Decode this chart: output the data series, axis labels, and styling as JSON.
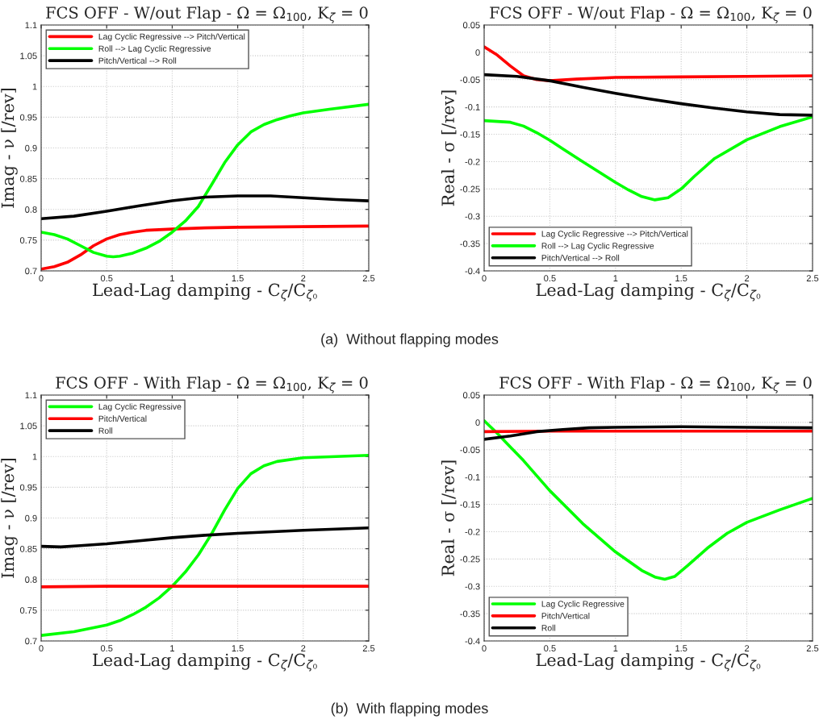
{
  "chart_data": [
    {
      "type": "line",
      "title": "FCS OFF - W/out Flap - Ω = Ω$_{100}$, K$_{ζ}$ = 0",
      "xlabel": "Lead-Lag damping - C$_{ζ}$/C$_{ζ₀}$",
      "ylabel": "Imag - ν [/rev]",
      "xlim": [
        0,
        2.5
      ],
      "ylim": [
        0.7,
        1.1
      ],
      "xticks": [
        0,
        0.5,
        1,
        1.5,
        2,
        2.5
      ],
      "yticks": [
        0.7,
        0.75,
        0.8,
        0.85,
        0.9,
        0.95,
        1,
        1.05,
        1.1
      ],
      "grid": true,
      "legend": "top left",
      "line_style": "solid",
      "marker": "none",
      "annotations": [
        "(a)  Without flapping modes"
      ],
      "series": [
        {
          "name": "Lag Cyclic Regressive --> Pitch/Vertical",
          "color": "#ff0000",
          "x": [
            0,
            0.1,
            0.2,
            0.3,
            0.4,
            0.5,
            0.6,
            0.7,
            0.8,
            1.0,
            1.25,
            1.5,
            2.0,
            2.5
          ],
          "values": [
            0.703,
            0.707,
            0.714,
            0.726,
            0.741,
            0.752,
            0.759,
            0.763,
            0.766,
            0.768,
            0.77,
            0.771,
            0.772,
            0.773
          ]
        },
        {
          "name": "Roll --> Lag Cyclic Regressive",
          "color": "#00ff00",
          "x": [
            0,
            0.1,
            0.2,
            0.3,
            0.4,
            0.5,
            0.55,
            0.6,
            0.7,
            0.8,
            0.9,
            1.0,
            1.1,
            1.2,
            1.3,
            1.4,
            1.5,
            1.6,
            1.7,
            1.8,
            1.9,
            2.0,
            2.2,
            2.5
          ],
          "values": [
            0.763,
            0.759,
            0.752,
            0.741,
            0.73,
            0.724,
            0.723,
            0.724,
            0.729,
            0.737,
            0.748,
            0.763,
            0.781,
            0.805,
            0.84,
            0.876,
            0.905,
            0.926,
            0.938,
            0.946,
            0.952,
            0.957,
            0.963,
            0.971
          ]
        },
        {
          "name": "Pitch/Vertical --> Roll",
          "color": "#000000",
          "x": [
            0,
            0.25,
            0.5,
            0.75,
            1.0,
            1.25,
            1.5,
            1.75,
            2.0,
            2.25,
            2.5
          ],
          "values": [
            0.785,
            0.789,
            0.797,
            0.806,
            0.814,
            0.82,
            0.822,
            0.822,
            0.819,
            0.816,
            0.814
          ]
        }
      ]
    },
    {
      "type": "line",
      "title": "FCS OFF - W/out Flap - Ω = Ω$_{100}$, K$_{ζ}$ = 0",
      "xlabel": "Lead-Lag damping - C$_{ζ}$/C$_{ζ₀}$",
      "ylabel": "Real - σ [/rev]",
      "xlim": [
        0,
        2.5
      ],
      "ylim": [
        -0.4,
        0.05
      ],
      "xticks": [
        0,
        0.5,
        1,
        1.5,
        2,
        2.5
      ],
      "yticks": [
        -0.4,
        -0.35,
        -0.3,
        -0.25,
        -0.2,
        -0.15,
        -0.1,
        -0.05,
        0,
        0.05
      ],
      "grid": true,
      "legend": "bottom left",
      "line_style": "solid",
      "marker": "none",
      "series": [
        {
          "name": "Lag Cyclic Regressive --> Pitch/Vertical",
          "color": "#ff0000",
          "x": [
            0,
            0.1,
            0.2,
            0.3,
            0.4,
            0.5,
            0.7,
            1.0,
            1.5,
            2.0,
            2.5
          ],
          "values": [
            0.01,
            -0.005,
            -0.025,
            -0.043,
            -0.05,
            -0.052,
            -0.049,
            -0.046,
            -0.045,
            -0.044,
            -0.043
          ]
        },
        {
          "name": "Roll --> Lag Cyclic Regressive",
          "color": "#00ff00",
          "x": [
            0,
            0.2,
            0.3,
            0.4,
            0.5,
            0.6,
            0.75,
            1.0,
            1.1,
            1.2,
            1.3,
            1.4,
            1.5,
            1.6,
            1.75,
            2.0,
            2.25,
            2.5
          ],
          "values": [
            -0.125,
            -0.128,
            -0.135,
            -0.147,
            -0.161,
            -0.177,
            -0.2,
            -0.238,
            -0.252,
            -0.264,
            -0.27,
            -0.266,
            -0.25,
            -0.227,
            -0.195,
            -0.16,
            -0.136,
            -0.118
          ]
        },
        {
          "name": "Pitch/Vertical --> Roll",
          "color": "#000000",
          "x": [
            0,
            0.25,
            0.5,
            0.75,
            1.0,
            1.25,
            1.5,
            1.75,
            2.0,
            2.25,
            2.5
          ],
          "values": [
            -0.041,
            -0.044,
            -0.052,
            -0.064,
            -0.075,
            -0.085,
            -0.094,
            -0.102,
            -0.109,
            -0.114,
            -0.115
          ]
        }
      ]
    },
    {
      "type": "line",
      "title": "FCS OFF - With Flap - Ω = Ω$_{100}$, K$_{ζ}$ = 0",
      "xlabel": "Lead-Lag damping - C$_{ζ}$/C$_{ζ₀}$",
      "ylabel": "Imag - ν [/rev]",
      "xlim": [
        0,
        2.5
      ],
      "ylim": [
        0.7,
        1.1
      ],
      "xticks": [
        0,
        0.5,
        1,
        1.5,
        2,
        2.5
      ],
      "yticks": [
        0.7,
        0.75,
        0.8,
        0.85,
        0.9,
        0.95,
        1,
        1.05,
        1.1
      ],
      "grid": true,
      "legend": "top left",
      "line_style": "solid",
      "marker": "none",
      "annotations": [
        "(b)  With flapping modes"
      ],
      "series": [
        {
          "name": "Lag Cyclic Regressive",
          "color": "#00ff00",
          "x": [
            0,
            0.25,
            0.5,
            0.6,
            0.7,
            0.8,
            0.9,
            1.0,
            1.1,
            1.2,
            1.3,
            1.4,
            1.5,
            1.6,
            1.7,
            1.8,
            2.0,
            2.5
          ],
          "values": [
            0.709,
            0.715,
            0.726,
            0.733,
            0.743,
            0.755,
            0.77,
            0.789,
            0.812,
            0.84,
            0.874,
            0.913,
            0.948,
            0.972,
            0.985,
            0.992,
            0.998,
            1.002
          ]
        },
        {
          "name": "Pitch/Vertical",
          "color": "#ff0000",
          "x": [
            0,
            0.5,
            1.0,
            1.5,
            2.0,
            2.5
          ],
          "values": [
            0.788,
            0.789,
            0.789,
            0.789,
            0.789,
            0.789
          ]
        },
        {
          "name": "Roll",
          "color": "#000000",
          "x": [
            0,
            0.15,
            0.3,
            0.5,
            0.75,
            1.0,
            1.25,
            1.5,
            2.0,
            2.5
          ],
          "values": [
            0.854,
            0.853,
            0.855,
            0.858,
            0.863,
            0.868,
            0.872,
            0.875,
            0.88,
            0.884
          ]
        }
      ]
    },
    {
      "type": "line",
      "title": "FCS OFF - With Flap - Ω = Ω$_{100}$, K$_{ζ}$ = 0",
      "xlabel": "Lead-Lag damping - C$_{ζ}$/C$_{ζ₀}$",
      "ylabel": "Real - σ [/rev]",
      "xlim": [
        0,
        2.5
      ],
      "ylim": [
        -0.4,
        0.05
      ],
      "xticks": [
        0,
        0.5,
        1,
        1.5,
        2,
        2.5
      ],
      "yticks": [
        -0.4,
        -0.35,
        -0.3,
        -0.25,
        -0.2,
        -0.15,
        -0.1,
        -0.05,
        0,
        0.05
      ],
      "grid": true,
      "legend": "bottom left",
      "line_style": "solid",
      "marker": "none",
      "series": [
        {
          "name": "Lag Cyclic Regressive",
          "color": "#00ff00",
          "x": [
            0,
            0.1,
            0.2,
            0.3,
            0.5,
            0.75,
            1.0,
            1.2,
            1.3,
            1.375,
            1.45,
            1.55,
            1.7,
            1.85,
            2.0,
            2.25,
            2.5
          ],
          "values": [
            0.003,
            -0.02,
            -0.045,
            -0.07,
            -0.125,
            -0.185,
            -0.237,
            -0.271,
            -0.283,
            -0.287,
            -0.282,
            -0.262,
            -0.23,
            -0.203,
            -0.183,
            -0.16,
            -0.139
          ]
        },
        {
          "name": "Pitch/Vertical",
          "color": "#ff0000",
          "x": [
            0,
            0.5,
            1.0,
            1.5,
            2.0,
            2.5
          ],
          "values": [
            -0.017,
            -0.016,
            -0.016,
            -0.016,
            -0.016,
            -0.016
          ]
        },
        {
          "name": "Roll",
          "color": "#000000",
          "x": [
            0,
            0.2,
            0.4,
            0.6,
            0.8,
            1.0,
            1.5,
            2.0,
            2.5
          ],
          "values": [
            -0.031,
            -0.025,
            -0.017,
            -0.013,
            -0.01,
            -0.009,
            -0.008,
            -0.009,
            -0.01
          ]
        }
      ]
    }
  ]
}
